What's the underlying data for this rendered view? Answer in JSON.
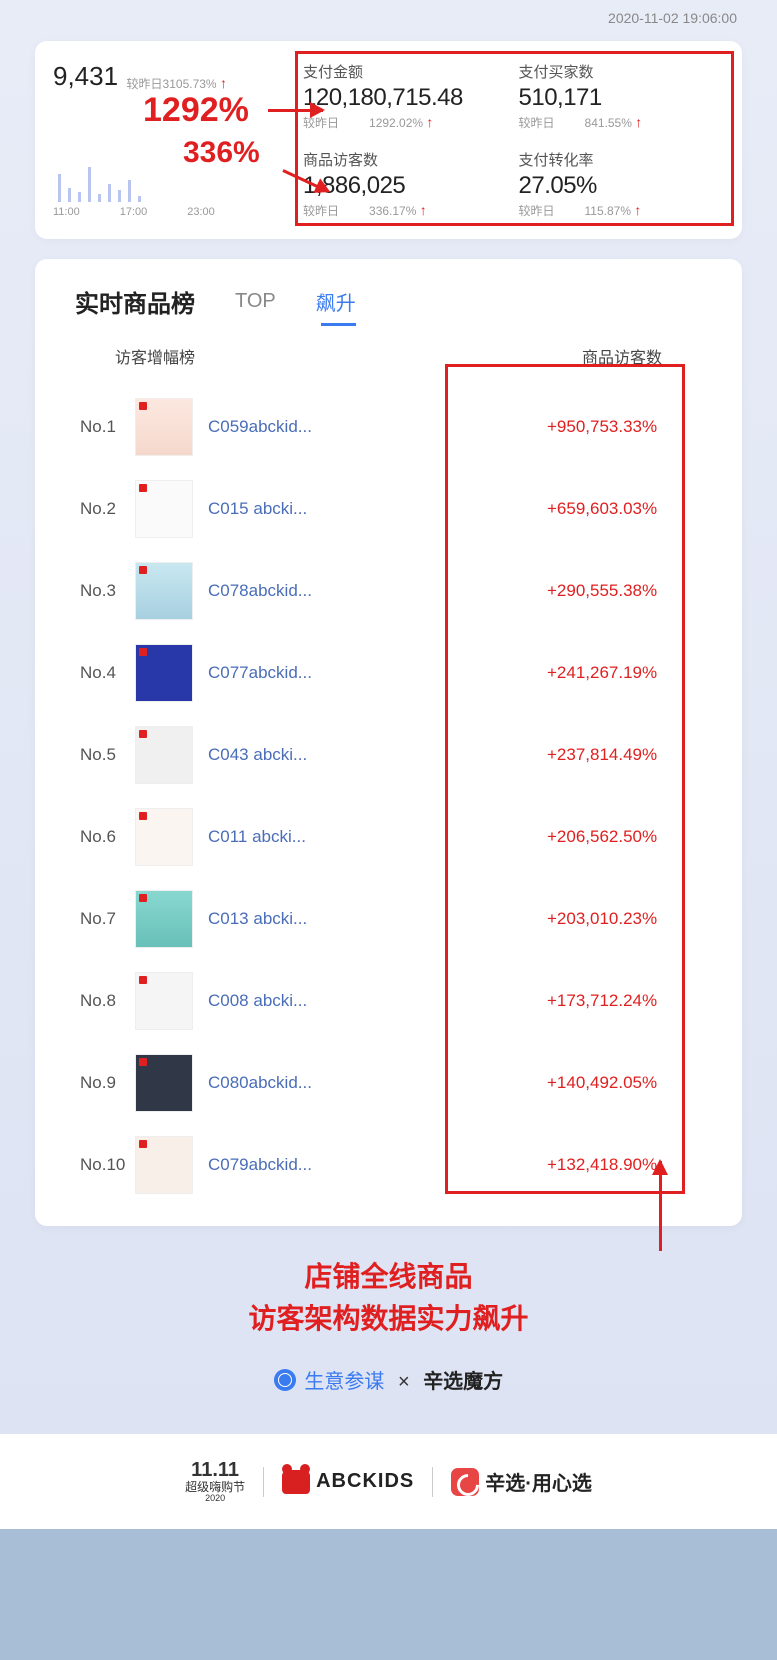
{
  "timestamp": "2020-11-02 19:06:00",
  "top_stat": {
    "value": "9,431",
    "compare_prefix": "较昨日",
    "compare_pct": "3105.73%"
  },
  "callouts": {
    "c1": "1292%",
    "c2": "336%"
  },
  "metrics": [
    {
      "label": "支付金额",
      "value": "120,180,715.48",
      "compare": "较昨日",
      "pct": "1292.02%"
    },
    {
      "label": "支付买家数",
      "value": "510,171",
      "compare": "较昨日",
      "pct": "841.55%"
    },
    {
      "label": "商品访客数",
      "value": "1,886,025",
      "compare": "较昨日",
      "pct": "336.17%"
    },
    {
      "label": "支付转化率",
      "value": "27.05%",
      "compare": "较昨日",
      "pct": "115.87%"
    }
  ],
  "bars": {
    "heights": [
      28,
      14,
      10,
      35,
      8,
      18,
      12,
      22,
      6
    ],
    "labels": [
      "11:00",
      "17:00",
      "23:00"
    ]
  },
  "tabs": {
    "title": "实时商品榜",
    "tab_top": "TOP",
    "tab_rise": "飙升"
  },
  "columns": {
    "left": "访客增幅榜",
    "right": "商品访客数"
  },
  "rows": [
    {
      "no": "No.1",
      "name": "C059abckid...",
      "pct": "+950,753.33%",
      "tc": "t1"
    },
    {
      "no": "No.2",
      "name": "C015 abcki...",
      "pct": "+659,603.03%",
      "tc": "t2"
    },
    {
      "no": "No.3",
      "name": "C078abckid...",
      "pct": "+290,555.38%",
      "tc": "t3"
    },
    {
      "no": "No.4",
      "name": "C077abckid...",
      "pct": "+241,267.19%",
      "tc": "t4"
    },
    {
      "no": "No.5",
      "name": "C043 abcki...",
      "pct": "+237,814.49%",
      "tc": "t5"
    },
    {
      "no": "No.6",
      "name": "C011 abcki...",
      "pct": "+206,562.50%",
      "tc": "t6"
    },
    {
      "no": "No.7",
      "name": "C013 abcki...",
      "pct": "+203,010.23%",
      "tc": "t7"
    },
    {
      "no": "No.8",
      "name": "C008 abcki...",
      "pct": "+173,712.24%",
      "tc": "t8"
    },
    {
      "no": "No.9",
      "name": "C080abckid...",
      "pct": "+140,492.05%",
      "tc": "t9"
    },
    {
      "no": "No.10",
      "name": "C079abckid...",
      "pct": "+132,418.90%",
      "tc": "t10"
    }
  ],
  "bottom_callout": {
    "line1": "店铺全线商品",
    "line2": "访客架构数据实力飙升"
  },
  "footer": {
    "brand1": "生意参谋",
    "x": "×",
    "brand2": "辛选魔方"
  },
  "bottombar": {
    "festival_top": "11.11",
    "festival_sub": "超级嗨购节",
    "festival_year": "2020",
    "abckids": "ABCKIDS",
    "xinxuan": "辛选·用心选"
  }
}
